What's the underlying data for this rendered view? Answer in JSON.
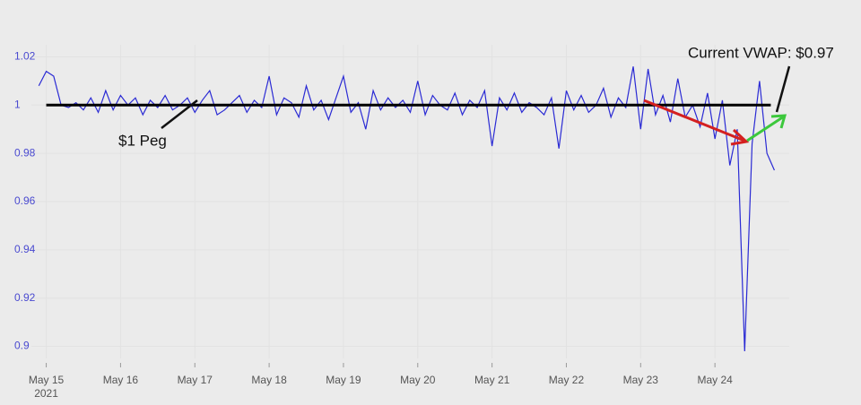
{
  "chart_data": {
    "type": "line",
    "annotations": [
      "$1 Peg",
      "Current VWAP: $0.97"
    ],
    "peg": 1,
    "x": [
      -0.1,
      0,
      0.1,
      0.2,
      0.3,
      0.4,
      0.5,
      0.6,
      0.7,
      0.8,
      0.9,
      1,
      1.1,
      1.2,
      1.3,
      1.4,
      1.5,
      1.6,
      1.7,
      1.8,
      1.9,
      2,
      2.1,
      2.2,
      2.3,
      2.4,
      2.5,
      2.6,
      2.7,
      2.8,
      2.9,
      3,
      3.1,
      3.2,
      3.3,
      3.4,
      3.5,
      3.6,
      3.7,
      3.8,
      3.9,
      4,
      4.1,
      4.2,
      4.3,
      4.4,
      4.5,
      4.6,
      4.7,
      4.8,
      4.9,
      5,
      5.1,
      5.2,
      5.3,
      5.4,
      5.5,
      5.6,
      5.7,
      5.8,
      5.9,
      6,
      6.1,
      6.2,
      6.3,
      6.4,
      6.5,
      6.6,
      6.7,
      6.8,
      6.9,
      7,
      7.1,
      7.2,
      7.3,
      7.4,
      7.5,
      7.6,
      7.7,
      7.8,
      7.9,
      8,
      8.1,
      8.2,
      8.3,
      8.4,
      8.5,
      8.6,
      8.7,
      8.8,
      8.9,
      9,
      9.1,
      9.2,
      9.3,
      9.4,
      9.5,
      9.6,
      9.7,
      9.8
    ],
    "series": [
      {
        "color": "#2a2ad4",
        "values": [
          1.008,
          1.014,
          1.012,
          1.0,
          0.999,
          1.001,
          0.998,
          1.003,
          0.997,
          1.006,
          0.998,
          1.004,
          1.0,
          1.003,
          0.996,
          1.002,
          0.999,
          1.004,
          0.998,
          1.0,
          1.003,
          0.997,
          1.002,
          1.006,
          0.996,
          0.998,
          1.001,
          1.004,
          0.997,
          1.002,
          0.999,
          1.012,
          0.996,
          1.003,
          1.001,
          0.995,
          1.008,
          0.998,
          1.002,
          0.994,
          1.003,
          1.012,
          0.997,
          1.001,
          0.99,
          1.006,
          0.998,
          1.003,
          0.999,
          1.002,
          0.997,
          1.01,
          0.996,
          1.004,
          1.0,
          0.998,
          1.005,
          0.996,
          1.002,
          0.999,
          1.006,
          0.983,
          1.003,
          0.998,
          1.005,
          0.997,
          1.001,
          0.999,
          0.996,
          1.003,
          0.982,
          1.006,
          0.998,
          1.004,
          0.997,
          1.0,
          1.007,
          0.995,
          1.003,
          0.999,
          1.016,
          0.99,
          1.015,
          0.996,
          1.004,
          0.993,
          1.011,
          0.995,
          1.0,
          0.991,
          1.005,
          0.986,
          1.002,
          0.975,
          0.99,
          0.898,
          0.984,
          1.01,
          0.98,
          0.973
        ]
      }
    ],
    "xlim": [
      -0.2,
      10
    ],
    "xticks": [
      {
        "value": 0,
        "label": "May 15"
      },
      {
        "value": 1,
        "label": "May 16"
      },
      {
        "value": 2,
        "label": "May 17"
      },
      {
        "value": 3,
        "label": "May 18"
      },
      {
        "value": 4,
        "label": "May 19"
      },
      {
        "value": 5,
        "label": "May 20"
      },
      {
        "value": 6,
        "label": "May 21"
      },
      {
        "value": 7,
        "label": "May 22"
      },
      {
        "value": 8,
        "label": "May 23"
      },
      {
        "value": 9,
        "label": "May 24"
      }
    ],
    "year_label": "2021",
    "ylim": [
      0.895,
      1.025
    ],
    "yticks": [
      0.9,
      0.92,
      0.94,
      0.96,
      0.98,
      1,
      1.02
    ],
    "grid": true
  }
}
